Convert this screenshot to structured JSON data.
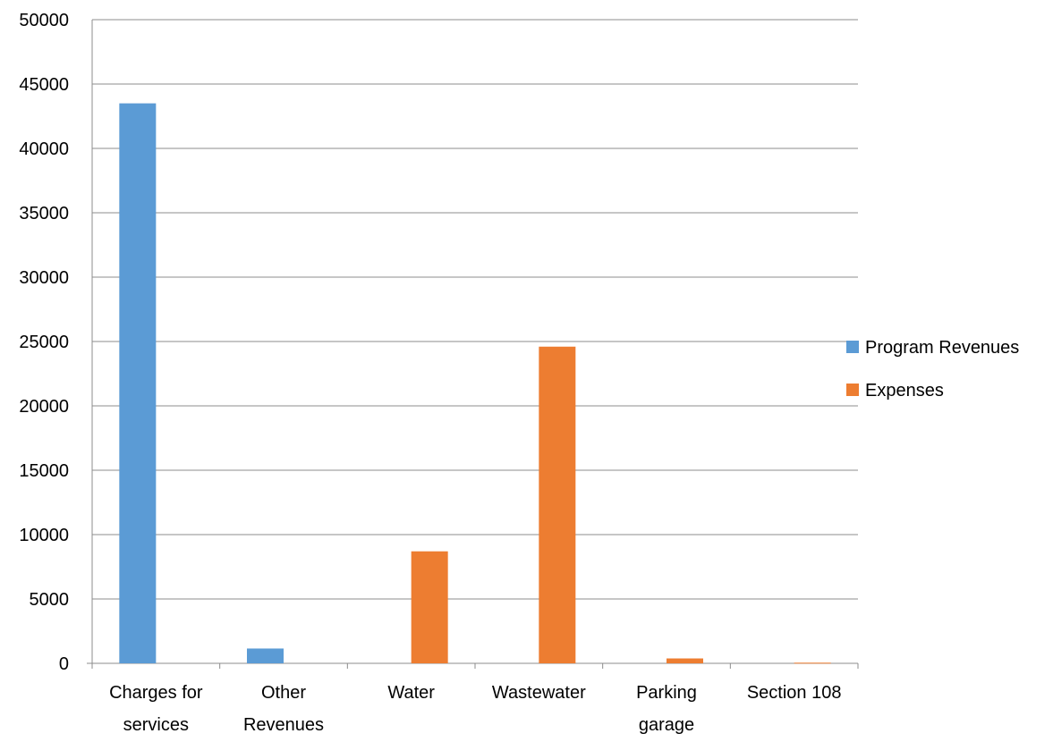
{
  "chart_data": {
    "type": "bar",
    "title": "",
    "xlabel": "",
    "ylabel": "",
    "categories": [
      "Charges for services",
      "Other Revenues",
      "Water",
      "Wastewater",
      "Parking garage",
      "Section 108"
    ],
    "category_label_lines": [
      [
        "Charges for",
        "services"
      ],
      [
        "Other",
        "Revenues"
      ],
      [
        "Water"
      ],
      [
        "Wastewater"
      ],
      [
        "Parking",
        "garage"
      ],
      [
        "Section 108"
      ]
    ],
    "series": [
      {
        "name": "Program Revenues",
        "color": "#5B9BD5",
        "values": [
          43500,
          1150,
          0,
          0,
          0,
          0
        ]
      },
      {
        "name": "Expenses",
        "color": "#ED7D31",
        "values": [
          0,
          0,
          8700,
          24600,
          380,
          50
        ]
      }
    ],
    "ylim": [
      0,
      50000
    ],
    "yticks": [
      0,
      5000,
      10000,
      15000,
      20000,
      25000,
      30000,
      35000,
      40000,
      45000,
      50000
    ],
    "grid": true,
    "legend_position": "right"
  }
}
